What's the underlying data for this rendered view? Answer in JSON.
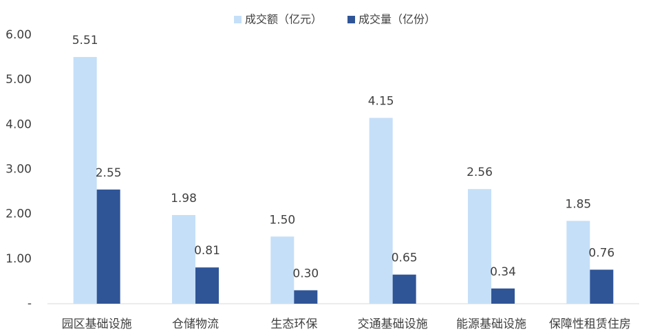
{
  "chart_data": {
    "type": "bar",
    "categories": [
      "园区基础设施",
      "仓储物流",
      "生态环保",
      "交通基础设施",
      "能源基础设施",
      "保障性租赁住房"
    ],
    "series": [
      {
        "name": "成交额（亿元）",
        "color": "#c5dff8",
        "values": [
          5.51,
          1.98,
          1.5,
          4.15,
          2.56,
          1.85
        ],
        "value_labels": [
          "5.51",
          "1.98",
          "1.50",
          "4.15",
          "2.56",
          "1.85"
        ]
      },
      {
        "name": "成交量（亿份）",
        "color": "#2f5597",
        "values": [
          2.55,
          0.81,
          0.3,
          0.65,
          0.34,
          0.76
        ],
        "value_labels": [
          "2.55",
          "0.81",
          "0.30",
          "0.65",
          "0.34",
          "0.76"
        ]
      }
    ],
    "ylim": [
      0,
      6
    ],
    "yticks": [
      {
        "value": 0,
        "label": "-"
      },
      {
        "value": 1,
        "label": "1.00"
      },
      {
        "value": 2,
        "label": "2.00"
      },
      {
        "value": 3,
        "label": "3.00"
      },
      {
        "value": 4,
        "label": "4.00"
      },
      {
        "value": 5,
        "label": "5.00"
      },
      {
        "value": 6,
        "label": "6.00"
      }
    ],
    "grid": false,
    "legend": "top"
  }
}
